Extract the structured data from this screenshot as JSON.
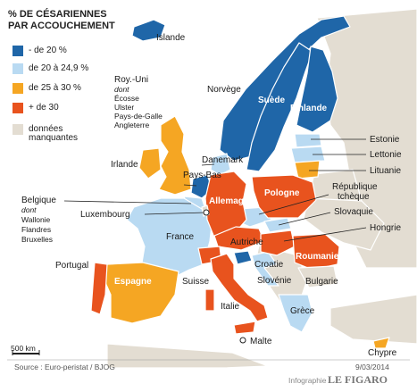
{
  "title_line1": "% DE CÉSARIENNES",
  "title_line2": "PAR ACCOUCHEMENT",
  "colors": {
    "sea": "#ffffff",
    "dark_blue": "#1f66a8",
    "light_blue": "#b9daf2",
    "light_orange": "#f5a623",
    "dark_orange": "#e8531e",
    "grey": "#e3ddd2",
    "outline": "#ffffff"
  },
  "legend": [
    {
      "label": "- de 20 %",
      "color": "#1f66a8"
    },
    {
      "label": "de 20 à 24,9 %",
      "color": "#b9daf2"
    },
    {
      "label": "de 25 à 30 %",
      "color": "#f5a623"
    },
    {
      "label": "+ de 30",
      "color": "#e8531e"
    },
    {
      "label": "données",
      "label2": "manquantes",
      "color": "#e3ddd2"
    }
  ],
  "countries": {
    "islande": "Islande",
    "norvege": "Norvège",
    "suede": "Suède",
    "finlande": "Finlande",
    "roy_uni": "Roy.-Uni",
    "roy_uni_dont": "dont",
    "roy_uni_parts": [
      "Écosse",
      "Ulster",
      "Pays-de-Galle",
      "Angleterre"
    ],
    "irlande": "Irlande",
    "danemark": "Danemark",
    "pays_bas": "Pays-Bas",
    "estonie": "Estonie",
    "lettonie": "Lettonie",
    "lituanie": "Lituanie",
    "belgique": "Belgique",
    "belgique_dont": "dont",
    "belgique_parts": [
      "Wallonie",
      "Flandres",
      "Bruxelles"
    ],
    "luxembourg": "Luxembourg",
    "allemagne": "Allemagne",
    "pologne": "Pologne",
    "rep_tcheque_1": "République",
    "rep_tcheque_2": "tchèque",
    "slovaquie": "Slovaquie",
    "hongrie": "Hongrie",
    "france": "France",
    "autriche": "Autriche",
    "roumanie": "Roumanie",
    "croatie": "Croatie",
    "slovenie": "Slovénie",
    "bulgarie": "Bulgarie",
    "portugal": "Portugal",
    "espagne": "Espagne",
    "suisse": "Suisse",
    "italie": "Italie",
    "grece": "Grèce",
    "malte": "Malte",
    "chypre": "Chypre"
  },
  "scale": "500 km",
  "source": "Source : Euro-peristat / BJOG",
  "date": "9/03/2014",
  "credit_prefix": "Infographie",
  "credit_brand": "LE FIGARO"
}
